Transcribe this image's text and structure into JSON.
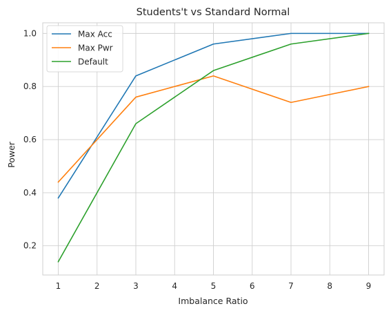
{
  "chart_data": {
    "type": "line",
    "title": "Students't vs Standard Normal",
    "xlabel": "Imbalance Ratio",
    "ylabel": "Power",
    "x": [
      1,
      3,
      5,
      7,
      9
    ],
    "xticks": [
      1,
      2,
      3,
      4,
      5,
      6,
      7,
      8,
      9
    ],
    "xtick_labels": [
      "1",
      "2",
      "3",
      "4",
      "5",
      "6",
      "7",
      "8",
      "9"
    ],
    "yticks": [
      0.2,
      0.4,
      0.6,
      0.8,
      1.0
    ],
    "ytick_labels": [
      "0.2",
      "0.4",
      "0.6",
      "0.8",
      "1.0"
    ],
    "xlim": [
      0.6,
      9.4
    ],
    "ylim": [
      0.09,
      1.04
    ],
    "grid": true,
    "legend_position": "top-left",
    "series": [
      {
        "name": "Max Acc",
        "color": "#1f77b4",
        "values": [
          0.38,
          0.84,
          0.96,
          1.0,
          1.0
        ]
      },
      {
        "name": "Max Pwr",
        "color": "#ff7f0e",
        "values": [
          0.44,
          0.76,
          0.84,
          0.74,
          0.8
        ]
      },
      {
        "name": "Default",
        "color": "#2ca02c",
        "values": [
          0.14,
          0.66,
          0.86,
          0.96,
          1.0
        ]
      }
    ]
  }
}
